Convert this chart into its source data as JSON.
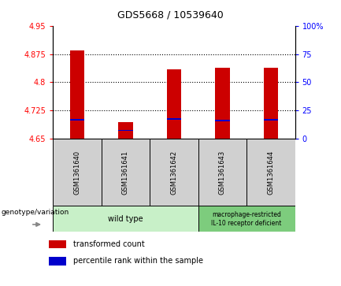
{
  "title": "GDS5668 / 10539640",
  "samples": [
    "GSM1361640",
    "GSM1361641",
    "GSM1361642",
    "GSM1361643",
    "GSM1361644"
  ],
  "bar_bottoms": [
    4.65,
    4.65,
    4.65,
    4.65,
    4.65
  ],
  "bar_tops": [
    4.885,
    4.695,
    4.835,
    4.838,
    4.838
  ],
  "blue_marks": [
    4.7,
    4.672,
    4.703,
    4.698,
    4.7
  ],
  "blue_mark_thickness": 0.004,
  "ylim": [
    4.65,
    4.95
  ],
  "yticks_left": [
    4.65,
    4.725,
    4.8,
    4.875,
    4.95
  ],
  "yticks_right": [
    0,
    25,
    50,
    75,
    100
  ],
  "bar_color": "#cc0000",
  "blue_color": "#0000cc",
  "bar_width": 0.3,
  "grid_ticks": [
    4.725,
    4.8,
    4.875
  ],
  "group1_label": "wild type",
  "group2_label": "macrophage-restricted\nIL-10 receptor deficient",
  "group1_color": "#c8f0c8",
  "group2_color": "#7dcc7d",
  "label_box_color": "#d0d0d0",
  "legend_red_label": "transformed count",
  "legend_blue_label": "percentile rank within the sample",
  "genotype_label": "genotype/variation",
  "title_fontsize": 9,
  "tick_fontsize": 7,
  "label_fontsize": 6,
  "legend_fontsize": 7,
  "geno_fontsize": 7
}
